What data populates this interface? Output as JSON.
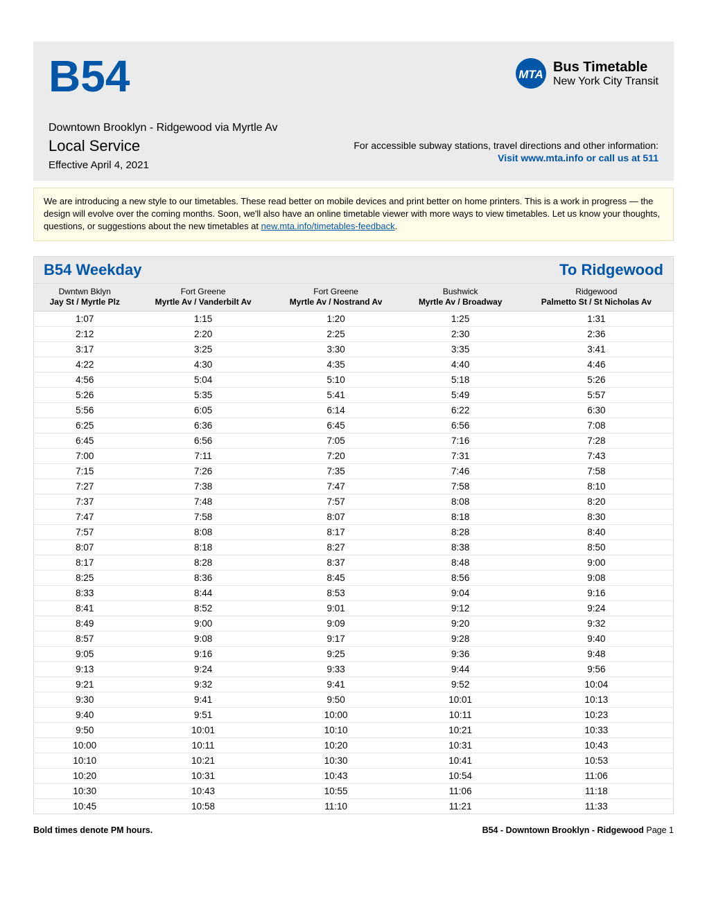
{
  "colors": {
    "brand_blue": "#0156a8",
    "header_bg": "#ebebeb",
    "notice_bg": "#fffde9",
    "notice_border": "#e8e2b8",
    "border_gray": "#d8d8d8",
    "row_border": "#e6e6e6"
  },
  "header": {
    "route": "B54",
    "timetable_title": "Bus Timetable",
    "agency": "New York City Transit",
    "route_desc": "Downtown Brooklyn - Ridgewood via Myrtle Av",
    "service_type": "Local Service",
    "effective": "Effective April 4, 2021",
    "access_text": "For accessible subway stations, travel directions and other information:",
    "visit_text": "Visit www.mta.info or call us at 511"
  },
  "notice": {
    "text_before_link": "We are introducing a new style to our timetables. These read better on mobile devices and print better on home printers. This is a work in progress — the design will evolve over the coming months. Soon, we'll also have an online timetable viewer with more ways to view timetables. Let us know your thoughts, questions, or suggestions about the new timetables at ",
    "link_text": "new.mta.info/timetables-feedback",
    "text_after_link": "."
  },
  "timetable": {
    "title_left": "B54 Weekday",
    "title_right": "To Ridgewood",
    "columns": [
      {
        "area": "Dwntwn Bklyn",
        "stop": "Jay St / Myrtle Plz"
      },
      {
        "area": "Fort Greene",
        "stop": "Myrtle Av / Vanderbilt Av"
      },
      {
        "area": "Fort Greene",
        "stop": "Myrtle Av / Nostrand Av"
      },
      {
        "area": "Bushwick",
        "stop": "Myrtle Av / Broadway"
      },
      {
        "area": "Ridgewood",
        "stop": "Palmetto St / St Nicholas Av"
      }
    ],
    "rows": [
      [
        "1:07",
        "1:15",
        "1:20",
        "1:25",
        "1:31"
      ],
      [
        "2:12",
        "2:20",
        "2:25",
        "2:30",
        "2:36"
      ],
      [
        "3:17",
        "3:25",
        "3:30",
        "3:35",
        "3:41"
      ],
      [
        "4:22",
        "4:30",
        "4:35",
        "4:40",
        "4:46"
      ],
      [
        "4:56",
        "5:04",
        "5:10",
        "5:18",
        "5:26"
      ],
      [
        "5:26",
        "5:35",
        "5:41",
        "5:49",
        "5:57"
      ],
      [
        "5:56",
        "6:05",
        "6:14",
        "6:22",
        "6:30"
      ],
      [
        "6:25",
        "6:36",
        "6:45",
        "6:56",
        "7:08"
      ],
      [
        "6:45",
        "6:56",
        "7:05",
        "7:16",
        "7:28"
      ],
      [
        "7:00",
        "7:11",
        "7:20",
        "7:31",
        "7:43"
      ],
      [
        "7:15",
        "7:26",
        "7:35",
        "7:46",
        "7:58"
      ],
      [
        "7:27",
        "7:38",
        "7:47",
        "7:58",
        "8:10"
      ],
      [
        "7:37",
        "7:48",
        "7:57",
        "8:08",
        "8:20"
      ],
      [
        "7:47",
        "7:58",
        "8:07",
        "8:18",
        "8:30"
      ],
      [
        "7:57",
        "8:08",
        "8:17",
        "8:28",
        "8:40"
      ],
      [
        "8:07",
        "8:18",
        "8:27",
        "8:38",
        "8:50"
      ],
      [
        "8:17",
        "8:28",
        "8:37",
        "8:48",
        "9:00"
      ],
      [
        "8:25",
        "8:36",
        "8:45",
        "8:56",
        "9:08"
      ],
      [
        "8:33",
        "8:44",
        "8:53",
        "9:04",
        "9:16"
      ],
      [
        "8:41",
        "8:52",
        "9:01",
        "9:12",
        "9:24"
      ],
      [
        "8:49",
        "9:00",
        "9:09",
        "9:20",
        "9:32"
      ],
      [
        "8:57",
        "9:08",
        "9:17",
        "9:28",
        "9:40"
      ],
      [
        "9:05",
        "9:16",
        "9:25",
        "9:36",
        "9:48"
      ],
      [
        "9:13",
        "9:24",
        "9:33",
        "9:44",
        "9:56"
      ],
      [
        "9:21",
        "9:32",
        "9:41",
        "9:52",
        "10:04"
      ],
      [
        "9:30",
        "9:41",
        "9:50",
        "10:01",
        "10:13"
      ],
      [
        "9:40",
        "9:51",
        "10:00",
        "10:11",
        "10:23"
      ],
      [
        "9:50",
        "10:01",
        "10:10",
        "10:21",
        "10:33"
      ],
      [
        "10:00",
        "10:11",
        "10:20",
        "10:31",
        "10:43"
      ],
      [
        "10:10",
        "10:21",
        "10:30",
        "10:41",
        "10:53"
      ],
      [
        "10:20",
        "10:31",
        "10:43",
        "10:54",
        "11:06"
      ],
      [
        "10:30",
        "10:43",
        "10:55",
        "11:06",
        "11:18"
      ],
      [
        "10:45",
        "10:58",
        "11:10",
        "11:21",
        "11:33"
      ]
    ]
  },
  "footer": {
    "left": "Bold times denote PM hours.",
    "right_prefix": "B54 - Downtown Brooklyn - Ridgewood ",
    "right_page": "Page 1"
  }
}
